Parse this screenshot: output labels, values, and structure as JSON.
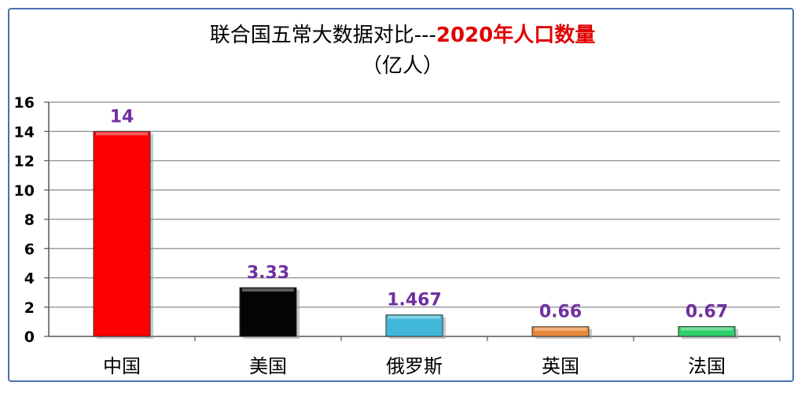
{
  "chart_data": {
    "type": "bar",
    "title_part1": "联合国五常大数据对比---",
    "title_part2": "2020年人口数量",
    "subtitle": "（亿人）",
    "categories": [
      "中国",
      "美国",
      "俄罗斯",
      "英国",
      "法国"
    ],
    "values": [
      14,
      3.33,
      1.467,
      0.66,
      0.67
    ],
    "data_labels": [
      "14",
      "3.33",
      "1.467",
      "0.66",
      "0.67"
    ],
    "bar_colors": [
      "#ff0000",
      "#050505",
      "#41b8d8",
      "#e8883a",
      "#2ccf6a"
    ],
    "ylim": [
      0,
      16
    ],
    "yticks": [
      "0",
      "2",
      "4",
      "6",
      "8",
      "10",
      "12",
      "14",
      "16"
    ],
    "grid": true,
    "label_color": "#7030a0",
    "title_highlight_color": "#e00000",
    "border_color": "#4a6fb0"
  }
}
